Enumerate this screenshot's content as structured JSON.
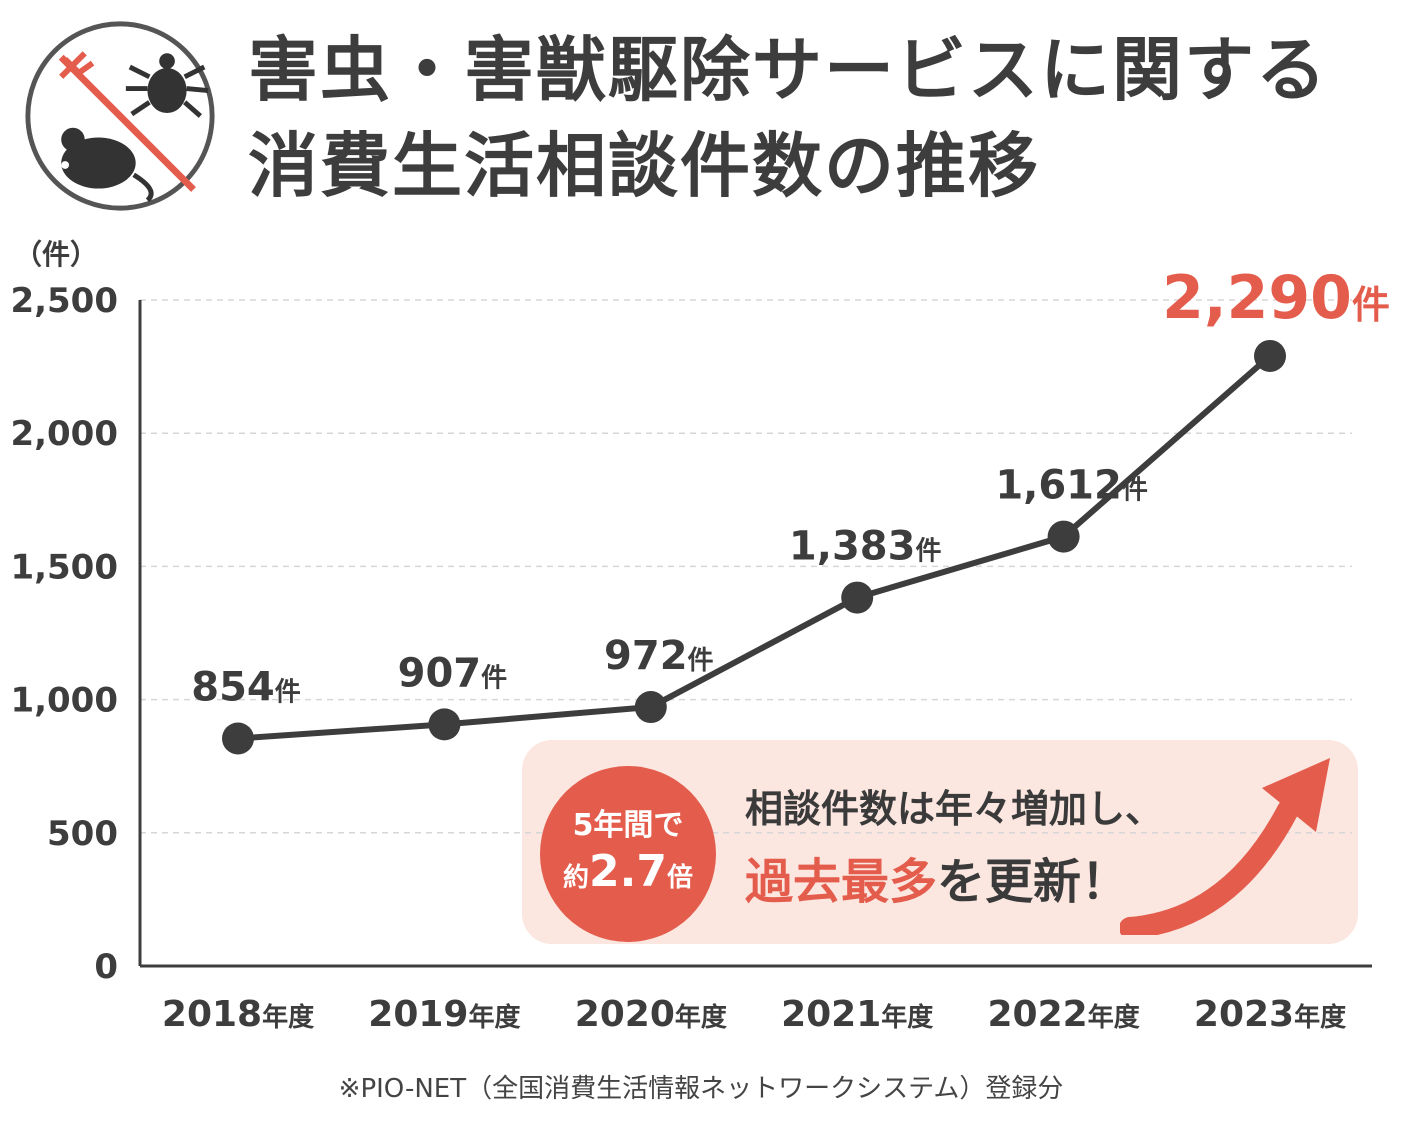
{
  "title": {
    "line1": "害虫・害獣駆除サービスに関する",
    "line2": "消費生活相談件数の推移"
  },
  "icons": {
    "logo": "no-pests-icon (tick and mouse with prohibition slash)",
    "arrow": "upward-trend-arrow-icon"
  },
  "colors": {
    "line": "#3d3d3d",
    "accent": "#e45c4c",
    "callout_bg": "#fbe6e0",
    "grid": "#d6d6d6"
  },
  "chart_data": {
    "type": "line",
    "unit_label": "（件）",
    "categories": [
      "2018年度",
      "2019年度",
      "2020年度",
      "2021年度",
      "2022年度",
      "2023年度"
    ],
    "values": [
      854,
      907,
      972,
      1383,
      1612,
      2290
    ],
    "value_labels": [
      "854",
      "907",
      "972",
      "1,383",
      "1,612",
      "2,290"
    ],
    "value_unit": "件",
    "yticks": [
      0,
      500,
      1000,
      1500,
      2000,
      2500
    ],
    "ytick_labels": [
      "0",
      "500",
      "1,000",
      "1,500",
      "2,000",
      "2,500"
    ],
    "ylim": [
      0,
      2500
    ],
    "grid": true,
    "highlight_index": 5
  },
  "callout": {
    "badge_line1": "5年間で",
    "badge_pre": "約",
    "badge_number": "2.7",
    "badge_post": "倍",
    "message_line1": "相談件数は年々増加し、",
    "message_highlight": "過去最多",
    "message_rest": "を更新！"
  },
  "note": "※PIO-NET（全国消費生活情報ネットワークシステム）登録分"
}
